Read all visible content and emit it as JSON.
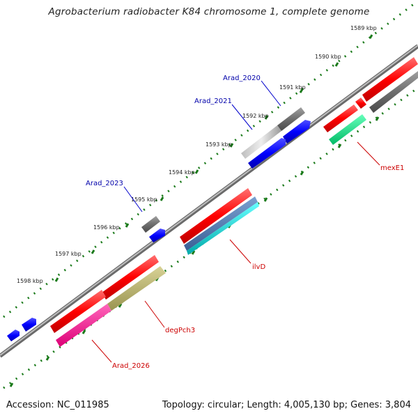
{
  "title": "Agrobacterium radiobacter K84 chromosome 1, complete genome",
  "footer": {
    "accession": "Accession: NC_011985",
    "summary": "Topology: circular; Length: 4,005,130 bp; Genes: 3,804"
  },
  "scale_labels": [
    "1589 kbp",
    "1590 kbp",
    "1591 kbp",
    "1592 kbp",
    "1593 kbp",
    "1594 kbp",
    "1595 kbp",
    "1596 kbp",
    "1597 kbp",
    "1598 kbp"
  ],
  "gene_labels": {
    "arad_2020": "Arad_2020",
    "arad_2021": "Arad_2021",
    "arad_2023": "Arad_2023",
    "mexe1": "mexE1",
    "ilvd": "ilvD",
    "degpch3": "degPch3",
    "arad_2026": "Arad_2026"
  },
  "colors": {
    "backbone": "#9a9a9a",
    "cds_red": "#ff0000",
    "gene_grey": "#6e6e6e",
    "gene_blue": "#0000ff",
    "gene_label_blue": "#0000aa",
    "gene_label_red": "#cc0000",
    "green_ticks": "#1a7a1a",
    "teal": "#00cc77",
    "steel_blue": "#4a78b0",
    "cyan": "#00cccc",
    "khaki": "#b8b26a",
    "magenta": "#ff1493",
    "light_grey": "#d0d0d0"
  }
}
